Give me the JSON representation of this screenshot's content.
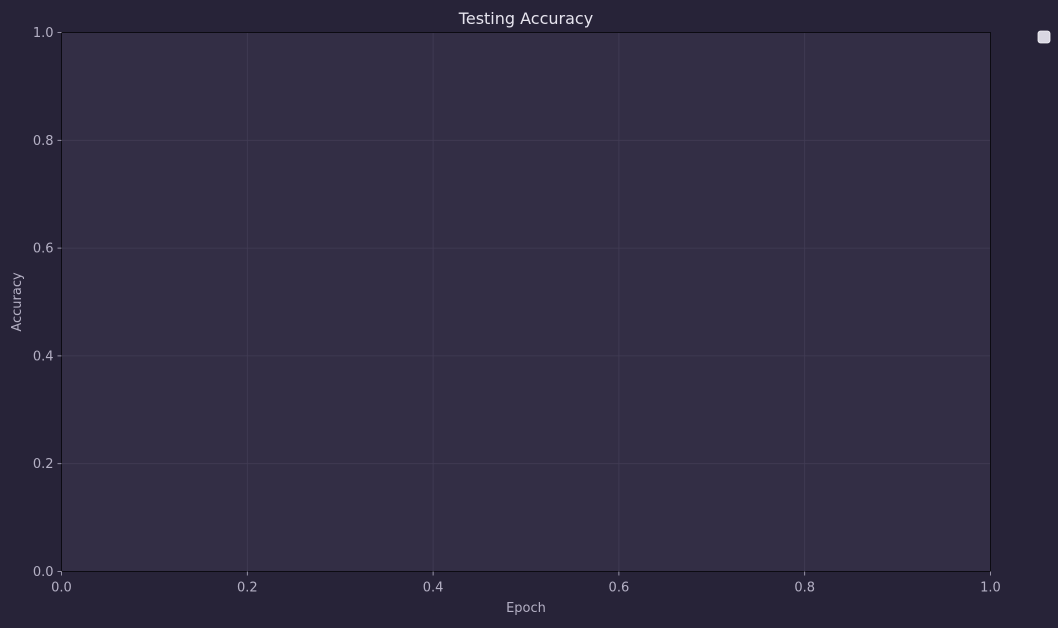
{
  "chart_data": {
    "type": "line",
    "title": "Testing Accuracy",
    "xlabel": "Epoch",
    "ylabel": "Accuracy",
    "xlim": [
      0,
      1
    ],
    "ylim": [
      0,
      1
    ],
    "xticks": [
      "0.0",
      "0.2",
      "0.4",
      "0.6",
      "0.8",
      "1.0"
    ],
    "yticks": [
      "0.0",
      "0.2",
      "0.4",
      "0.6",
      "0.8",
      "1.0"
    ],
    "series": [],
    "grid": true,
    "legend": "top-right"
  },
  "colors": {
    "figure_bg": "#272338",
    "axes_bg": "#332e45",
    "grid": "#423c55",
    "axis_line": "#0c0b12",
    "title_text": "#e6e4ee",
    "label_text": "#b4b0c4",
    "tick_text": "#b4b0c4",
    "legend_marker": "#d9d7e2"
  }
}
